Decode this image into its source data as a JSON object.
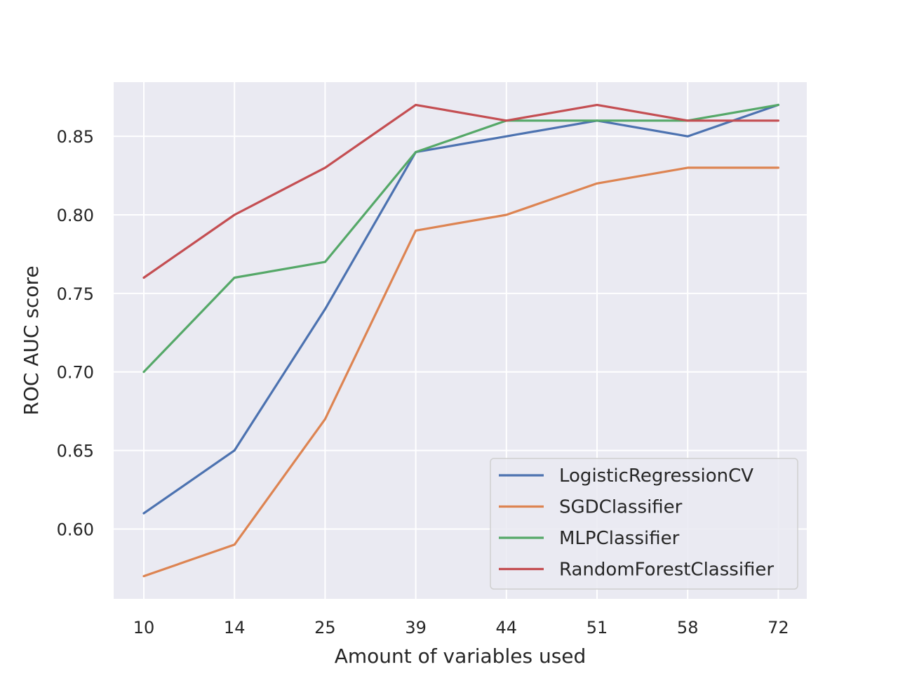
{
  "chart_data": {
    "type": "line",
    "categories": [
      "10",
      "14",
      "25",
      "39",
      "44",
      "51",
      "58",
      "72"
    ],
    "xlabel": "Amount of variables used",
    "ylabel": "ROC AUC score",
    "ylim": [
      0.5555,
      0.8845
    ],
    "yticks": [
      "0.60",
      "0.65",
      "0.70",
      "0.75",
      "0.80",
      "0.85"
    ],
    "grid": true,
    "legend_position": "lower-right",
    "series": [
      {
        "name": "LogisticRegressionCV",
        "color": "#4c72b0",
        "values": [
          0.61,
          0.65,
          0.74,
          0.84,
          0.85,
          0.86,
          0.85,
          0.87
        ]
      },
      {
        "name": "SGDClassifier",
        "color": "#dd8452",
        "values": [
          0.57,
          0.59,
          0.67,
          0.79,
          0.8,
          0.82,
          0.83,
          0.83
        ]
      },
      {
        "name": "MLPClassifier",
        "color": "#55a868",
        "values": [
          0.7,
          0.76,
          0.77,
          0.84,
          0.86,
          0.86,
          0.86,
          0.87
        ]
      },
      {
        "name": "RandomForestClassifier",
        "color": "#c44e52",
        "values": [
          0.76,
          0.8,
          0.83,
          0.87,
          0.86,
          0.87,
          0.86,
          0.86
        ]
      }
    ],
    "background_color": "#eaeaf2"
  }
}
